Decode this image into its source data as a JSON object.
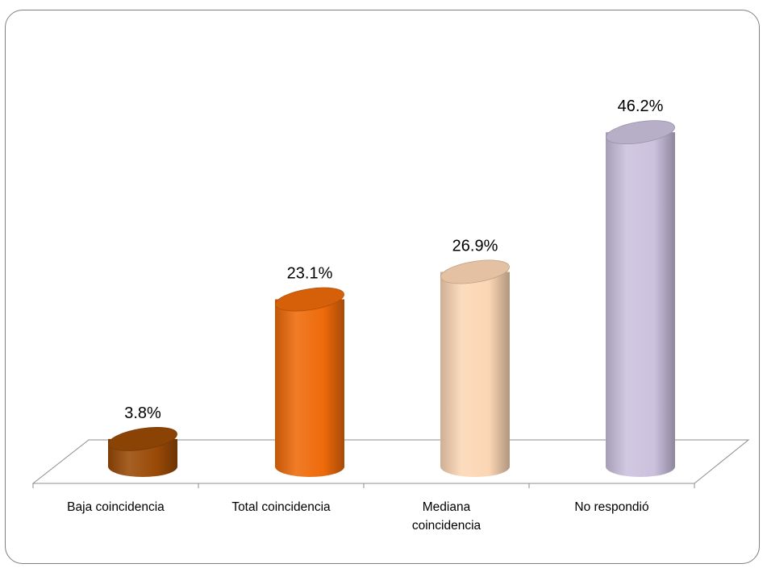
{
  "chart_data": {
    "type": "bar",
    "style": "3d-cylinder",
    "title": "",
    "xlabel": "",
    "ylabel": "",
    "categories": [
      [
        "Baja coincidencia"
      ],
      [
        "Total coincidencia"
      ],
      [
        "Mediana",
        "coincidencia"
      ],
      [
        "No respondió"
      ]
    ],
    "values": [
      3.8,
      23.1,
      26.9,
      46.2
    ],
    "value_labels": [
      "3.8%",
      "23.1%",
      "26.9%",
      "46.2%"
    ],
    "colors": [
      "#9a4a06",
      "#ee6a0a",
      "#fcd6b4",
      "#cbc1de"
    ],
    "ylim": [
      0,
      50
    ],
    "grid": false,
    "legend": "none"
  }
}
